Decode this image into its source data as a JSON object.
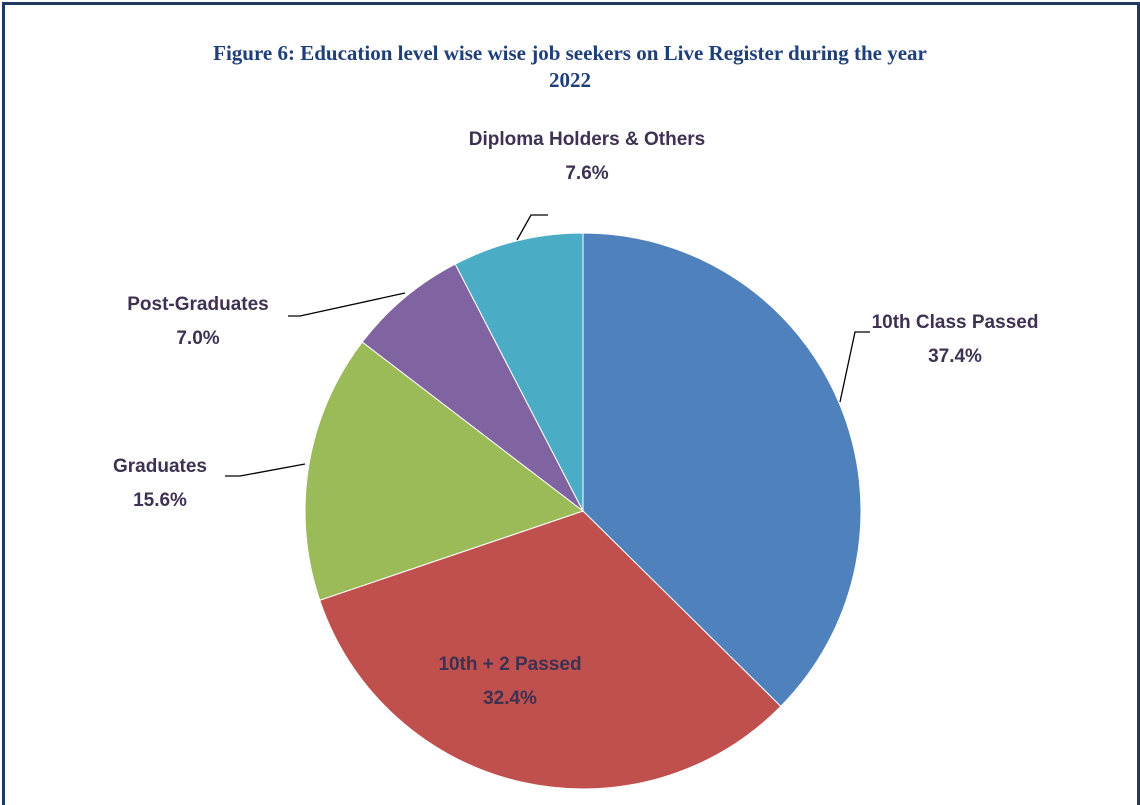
{
  "chart_data": {
    "type": "pie",
    "title": "Figure 6: Education level wise wise job seekers on Live Register during the year 2022",
    "categories": [
      "10th Class Passed",
      "10th + 2 Passed",
      "Graduates",
      "Post-Graduates",
      "Diploma Holders & Others"
    ],
    "values": [
      37.4,
      32.4,
      15.6,
      7.0,
      7.6
    ],
    "value_labels": [
      "37.4%",
      "32.4%",
      "15.6%",
      "7.0%",
      "7.6%"
    ],
    "colors": [
      "#4f81bd",
      "#c0504d",
      "#9bbb59",
      "#8064a2",
      "#4bacc6"
    ]
  }
}
